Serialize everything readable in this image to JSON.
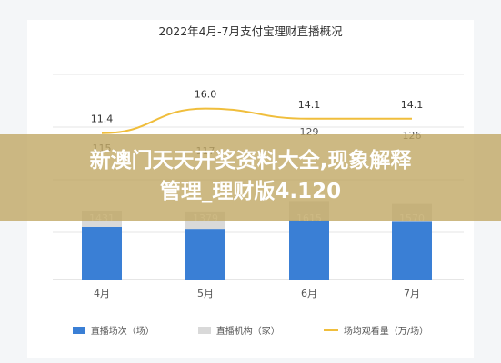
{
  "overlay": {
    "line1": "新澳门天天开奖资料大全,现象解释",
    "line2": "管理_理财版4.120"
  },
  "chart_data": {
    "type": "bar",
    "title": "2022年4月-7月支付宝理财直播概况",
    "categories": [
      "4月",
      "5月",
      "6月",
      "7月"
    ],
    "series": [
      {
        "name": "直播场次（场）",
        "kind": "bar",
        "values": [
          1431,
          1379,
          1615,
          1570
        ],
        "color": "#3a7fd5"
      },
      {
        "name": "直播机构（家）",
        "kind": "bar",
        "values": [
          115,
          117,
          129,
          126
        ],
        "color": "#d9d9d9"
      },
      {
        "name": "场均观看量（万/场）",
        "kind": "line",
        "values": [
          11.4,
          16.0,
          14.1,
          14.1
        ],
        "color": "#f0be3c"
      }
    ],
    "grid": true,
    "legend": "bottom"
  }
}
